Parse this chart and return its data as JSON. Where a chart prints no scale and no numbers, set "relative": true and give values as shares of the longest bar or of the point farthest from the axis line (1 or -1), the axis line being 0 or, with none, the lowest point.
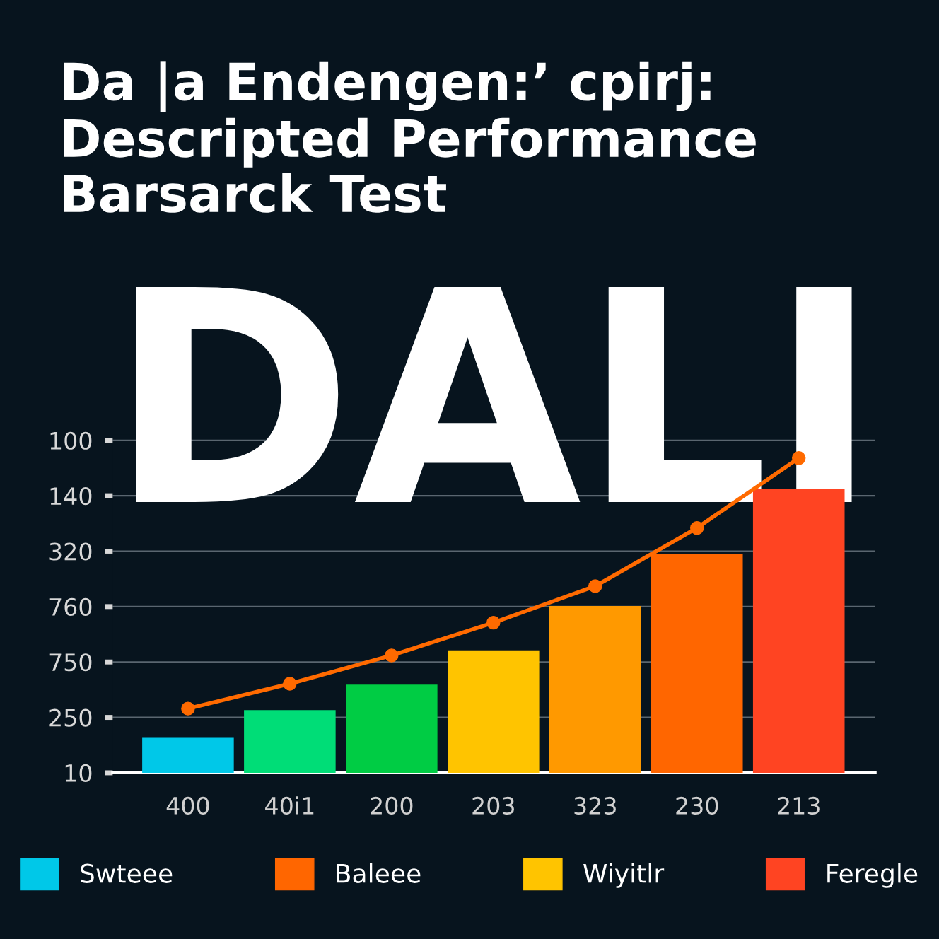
{
  "chart_data": {
    "type": "bar",
    "title": "Da |a Endengen:ʼ cpirj:\nDescripted Performance\nBarsarck Test",
    "annotations": [
      "DALI",
      "10",
      "250",
      "750",
      "760",
      "320",
      "140",
      "100"
    ],
    "categories": [
      "400",
      "40i1",
      "200",
      "203",
      "323",
      "230",
      "213"
    ],
    "relative": true,
    "series": [
      {
        "name": "Swteee",
        "color": "#00c8e8",
        "values": [
          0.111,
          null,
          null,
          null,
          null,
          null,
          null
        ]
      },
      {
        "name": "Baleee",
        "color": "#ff6600",
        "values": [
          null,
          null,
          null,
          null,
          null,
          0.695,
          null
        ]
      },
      {
        "name": "Wiyitlr",
        "color": "#ffc400",
        "values": [
          null,
          null,
          null,
          0.389,
          null,
          null,
          null
        ]
      },
      {
        "name": "Feregle",
        "color": "#ff4422",
        "values": [
          null,
          null,
          null,
          null,
          null,
          null,
          0.903
        ]
      },
      {
        "colors": [
          null,
          "#00dd77",
          "#00cc44",
          null,
          null,
          null,
          null
        ],
        "values": [
          null,
          0.199,
          0.28,
          null,
          null,
          null,
          null
        ]
      },
      {
        "color": "#ff9900",
        "values": [
          null,
          null,
          null,
          null,
          0.53,
          null,
          null
        ]
      },
      {
        "type": "line",
        "color": "#ff6a00",
        "marker": "circle",
        "line_style": "solid",
        "values": [
          0.204,
          0.283,
          0.373,
          0.477,
          0.593,
          0.778,
          1
        ]
      }
    ],
    "grid": "y",
    "legend": "bottom"
  }
}
